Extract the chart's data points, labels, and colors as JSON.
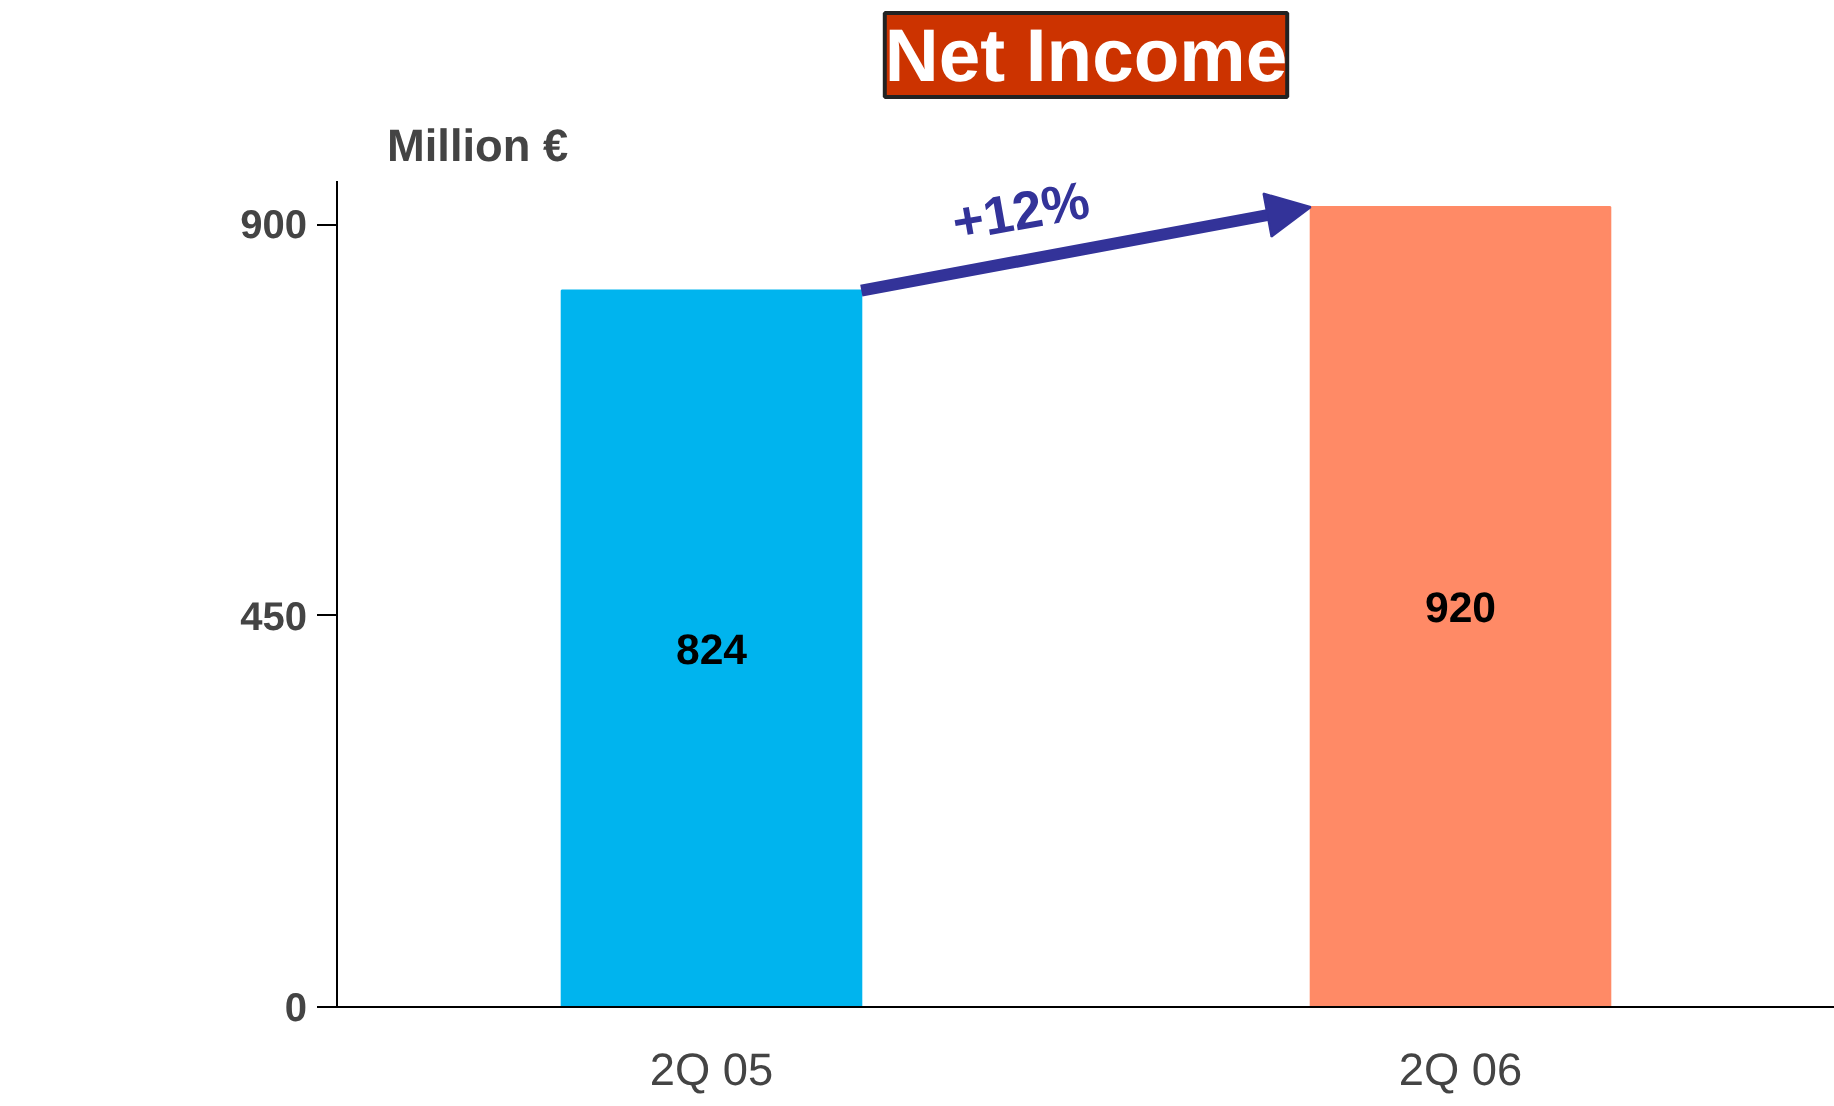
{
  "chart_data": {
    "type": "bar",
    "title": "Net Income",
    "ylabel": "Million €",
    "categories": [
      "2Q 05",
      "2Q 06"
    ],
    "values": [
      824,
      920
    ],
    "colors": [
      "#00b4ee",
      "#ff8a66"
    ],
    "ylim": [
      0,
      950
    ],
    "yticks": [
      0,
      450,
      900
    ],
    "data_labels": true,
    "annotations": [
      "+12%"
    ]
  }
}
